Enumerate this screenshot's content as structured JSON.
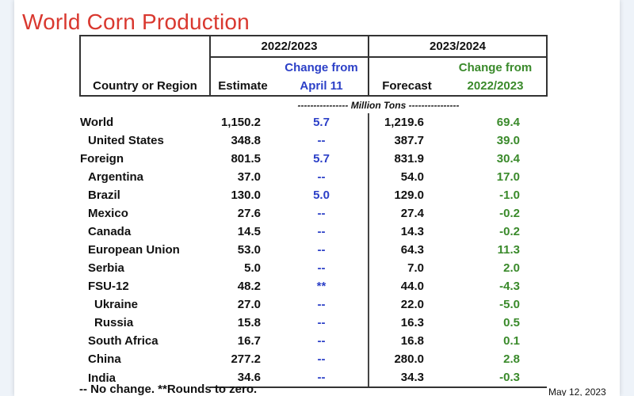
{
  "title": "World Corn Production",
  "header": {
    "group1": "2022/2023",
    "group2": "2023/2024",
    "col1": "Country or Region",
    "col2": "Estimate",
    "col3_line1": "Change from",
    "col3_line2": "April 11",
    "col4": "Forecast",
    "col5_line1": "Change from",
    "col5_line2": "2022/2023"
  },
  "units": "---------------- Million Tons ----------------",
  "rows": [
    {
      "name": "World",
      "estimate": "1,150.2",
      "change_april": "5.7",
      "forecast": "1,219.6",
      "change_prev": "69.4"
    },
    {
      "name": "United States",
      "estimate": "348.8",
      "change_april": "--",
      "forecast": "387.7",
      "change_prev": "39.0"
    },
    {
      "name": "Foreign",
      "estimate": "801.5",
      "change_april": "5.7",
      "forecast": "831.9",
      "change_prev": "30.4"
    },
    {
      "name": "Argentina",
      "estimate": "37.0",
      "change_april": "--",
      "forecast": "54.0",
      "change_prev": "17.0"
    },
    {
      "name": "Brazil",
      "estimate": "130.0",
      "change_april": "5.0",
      "forecast": "129.0",
      "change_prev": "-1.0"
    },
    {
      "name": "Mexico",
      "estimate": "27.6",
      "change_april": "--",
      "forecast": "27.4",
      "change_prev": "-0.2"
    },
    {
      "name": "Canada",
      "estimate": "14.5",
      "change_april": "--",
      "forecast": "14.3",
      "change_prev": "-0.2"
    },
    {
      "name": "European Union",
      "estimate": "53.0",
      "change_april": "--",
      "forecast": "64.3",
      "change_prev": "11.3"
    },
    {
      "name": "Serbia",
      "estimate": "5.0",
      "change_april": "--",
      "forecast": "7.0",
      "change_prev": "2.0"
    },
    {
      "name": "FSU-12",
      "estimate": "48.2",
      "change_april": "**",
      "forecast": "44.0",
      "change_prev": "-4.3"
    },
    {
      "name": "Ukraine",
      "estimate": "27.0",
      "change_april": "--",
      "forecast": "22.0",
      "change_prev": "-5.0"
    },
    {
      "name": "Russia",
      "estimate": "15.8",
      "change_april": "--",
      "forecast": "16.3",
      "change_prev": "0.5"
    },
    {
      "name": "South Africa",
      "estimate": "16.7",
      "change_april": "--",
      "forecast": "16.8",
      "change_prev": "0.1"
    },
    {
      "name": "China",
      "estimate": "277.2",
      "change_april": "--",
      "forecast": "280.0",
      "change_prev": "2.8"
    },
    {
      "name": "India",
      "estimate": "34.6",
      "change_april": "--",
      "forecast": "34.3",
      "change_prev": "-0.3"
    }
  ],
  "footnote": "-- No change.  **Rounds to zero.",
  "date": "May 12, 2023",
  "colors": {
    "title": "#d9382f",
    "change_april": "#2b3fc7",
    "change_prev": "#3a8a2b"
  }
}
